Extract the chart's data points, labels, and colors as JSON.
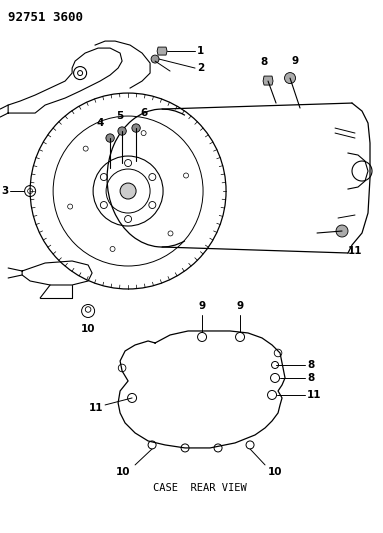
{
  "title": "92751 3600",
  "background_color": "#ffffff",
  "line_color": "#000000",
  "text_color": "#000000",
  "figsize": [
    3.83,
    5.33
  ],
  "dpi": 100,
  "subtitle": "CASE  REAR VIEW"
}
